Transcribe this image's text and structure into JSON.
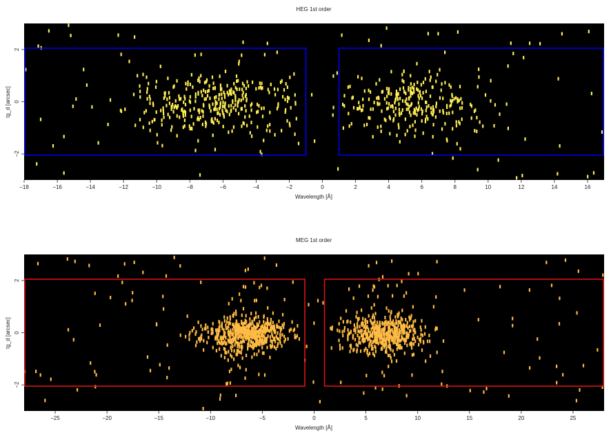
{
  "chart_data": [
    {
      "type": "heatmap",
      "title": "HEG 1st order",
      "xlabel": "Wavelength [Å]",
      "ylabel": "tg_d [arcsec]",
      "xlim": [
        -18,
        17
      ],
      "ylim": [
        -3,
        3
      ],
      "xticks": [
        -18,
        -16,
        -14,
        -12,
        -10,
        -8,
        -6,
        -4,
        -2,
        0,
        2,
        4,
        6,
        8,
        10,
        12,
        14,
        16
      ],
      "yticks": [
        -2,
        0,
        2
      ],
      "grid": false,
      "background_color": "#000000",
      "event_color": "#ffee55",
      "region_color": "#0000ee",
      "regions": [
        {
          "x": [
            -18,
            -1.0
          ],
          "y": [
            -2.05,
            2.05
          ]
        },
        {
          "x": [
            1.0,
            17
          ],
          "y": [
            -2.05,
            2.05
          ]
        }
      ],
      "clusters": [
        {
          "x_center": -6.5,
          "x_sigma": 2.6,
          "y_sigma": 0.6,
          "count": 330,
          "x_min": -13.0,
          "x_max": -1.6
        },
        {
          "x_center": 5.4,
          "x_sigma": 2.1,
          "y_sigma": 0.6,
          "count": 250,
          "x_min": 1.2,
          "x_max": 10.5
        }
      ],
      "background_count": 110
    },
    {
      "type": "heatmap",
      "title": "MEG 1st order",
      "xlabel": "Wavelength [Å]",
      "ylabel": "tg_d [arcsec]",
      "xlim": [
        -28,
        28
      ],
      "ylim": [
        -3,
        3
      ],
      "xticks": [
        -25,
        -20,
        -15,
        -10,
        -5,
        0,
        5,
        10,
        15,
        20,
        25
      ],
      "yticks": [
        -2,
        0,
        2
      ],
      "grid": false,
      "background_color": "#000000",
      "event_color": "#ffbb44",
      "region_color": "#dd1111",
      "regions": [
        {
          "x": [
            -28,
            -0.9
          ],
          "y": [
            -2.05,
            2.05
          ]
        },
        {
          "x": [
            1.0,
            28
          ],
          "y": [
            -2.05,
            2.05
          ]
        }
      ],
      "clusters": [
        {
          "x_center": -6.8,
          "x_sigma": 2.1,
          "y_sigma": 0.32,
          "count": 520,
          "x_min": -13.0,
          "x_max": -1.5
        },
        {
          "x_center": 6.6,
          "x_sigma": 2.0,
          "y_sigma": 0.35,
          "count": 470,
          "x_min": 1.5,
          "x_max": 12.5
        },
        {
          "x_center": -7.0,
          "x_sigma": 1.2,
          "y_sigma": 1.6,
          "count": 60,
          "x_min": -11.0,
          "x_max": -3.0
        },
        {
          "x_center": 6.8,
          "x_sigma": 1.2,
          "y_sigma": 1.6,
          "count": 60,
          "x_min": 3.0,
          "x_max": 11.0
        }
      ],
      "background_count": 130
    }
  ]
}
